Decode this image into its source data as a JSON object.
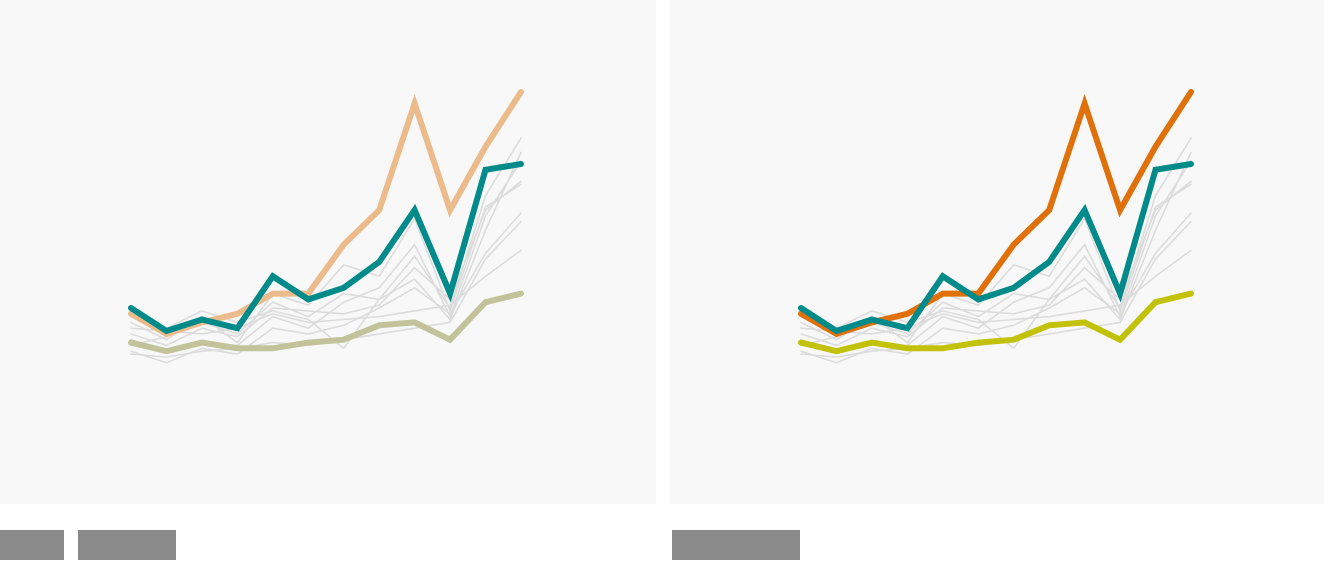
{
  "chart_data": [
    {
      "type": "line",
      "x": [
        1,
        2,
        3,
        4,
        5,
        6,
        7,
        8,
        9,
        10,
        11,
        12
      ],
      "ylim": [
        0,
        100
      ],
      "grid": false,
      "legend": "none",
      "series": [
        {
          "role": "context",
          "color": "#dcdcdc",
          "values": [
            20,
            14,
            22,
            13,
            30,
            26,
            40,
            36,
            56,
            24,
            60,
            68
          ]
        },
        {
          "role": "context",
          "color": "#dcdcdc",
          "values": [
            14,
            10,
            13,
            12,
            22,
            18,
            27,
            32,
            47,
            22,
            57,
            76
          ]
        },
        {
          "role": "context",
          "color": "#dcdcdc",
          "values": [
            18,
            17,
            16,
            18,
            23,
            20,
            21,
            22,
            24,
            26,
            36,
            45
          ]
        },
        {
          "role": "context",
          "color": "#dcdcdc",
          "values": [
            9,
            8,
            10,
            11,
            13,
            12,
            14,
            16,
            18,
            20,
            42,
            55
          ]
        },
        {
          "role": "context",
          "color": "#dcdcdc",
          "values": [
            12,
            15,
            20,
            16,
            27,
            22,
            30,
            28,
            43,
            25,
            64,
            84
          ]
        },
        {
          "role": "context",
          "color": "#dcdcdc",
          "values": [
            16,
            12,
            18,
            15,
            25,
            24,
            23,
            26,
            39,
            28,
            59,
            69
          ]
        },
        {
          "role": "context",
          "color": "#dcdcdc",
          "values": [
            10,
            6,
            11,
            9,
            18,
            16,
            19,
            25,
            32,
            23,
            44,
            58
          ]
        },
        {
          "role": "context",
          "color": "#dcdcdc",
          "values": [
            22,
            18,
            24,
            20,
            24,
            21,
            11,
            28,
            35,
            21,
            52,
            79
          ]
        },
        {
          "role": "highlight-orange",
          "values": [
            23,
            16,
            20,
            23,
            30,
            30,
            47,
            59,
            96,
            59,
            81,
            100
          ]
        },
        {
          "role": "highlight-teal",
          "values": [
            25,
            17,
            21,
            18,
            36,
            28,
            32,
            41,
            59,
            30,
            73,
            75
          ]
        },
        {
          "role": "highlight-olive",
          "values": [
            13,
            10,
            13,
            11,
            11,
            13,
            14,
            19,
            20,
            14,
            27,
            30
          ]
        }
      ]
    },
    {
      "type": "line",
      "x": [
        1,
        2,
        3,
        4,
        5,
        6,
        7,
        8,
        9,
        10,
        11,
        12
      ],
      "ylim": [
        0,
        100
      ],
      "grid": false,
      "legend": "none",
      "series": [
        {
          "role": "context",
          "color": "#dcdcdc",
          "values": [
            20,
            14,
            22,
            13,
            30,
            26,
            40,
            36,
            56,
            24,
            60,
            68
          ]
        },
        {
          "role": "context",
          "color": "#dcdcdc",
          "values": [
            14,
            10,
            13,
            12,
            22,
            18,
            27,
            32,
            47,
            22,
            57,
            76
          ]
        },
        {
          "role": "context",
          "color": "#dcdcdc",
          "values": [
            18,
            17,
            16,
            18,
            23,
            20,
            21,
            22,
            24,
            26,
            36,
            45
          ]
        },
        {
          "role": "context",
          "color": "#dcdcdc",
          "values": [
            9,
            8,
            10,
            11,
            13,
            12,
            14,
            16,
            18,
            20,
            42,
            55
          ]
        },
        {
          "role": "context",
          "color": "#dcdcdc",
          "values": [
            12,
            15,
            20,
            16,
            27,
            22,
            30,
            28,
            43,
            25,
            64,
            84
          ]
        },
        {
          "role": "context",
          "color": "#dcdcdc",
          "values": [
            16,
            12,
            18,
            15,
            25,
            24,
            23,
            26,
            39,
            28,
            59,
            69
          ]
        },
        {
          "role": "context",
          "color": "#dcdcdc",
          "values": [
            10,
            6,
            11,
            9,
            18,
            16,
            19,
            25,
            32,
            23,
            44,
            58
          ]
        },
        {
          "role": "context",
          "color": "#dcdcdc",
          "values": [
            22,
            18,
            24,
            20,
            24,
            21,
            11,
            28,
            35,
            21,
            52,
            79
          ]
        },
        {
          "role": "highlight-orange",
          "values": [
            23,
            16,
            20,
            23,
            30,
            30,
            47,
            59,
            96,
            59,
            81,
            100
          ]
        },
        {
          "role": "highlight-teal",
          "values": [
            25,
            17,
            21,
            18,
            36,
            28,
            32,
            41,
            59,
            30,
            73,
            75
          ]
        },
        {
          "role": "highlight-olive",
          "values": [
            13,
            10,
            13,
            11,
            11,
            13,
            14,
            19,
            20,
            14,
            27,
            30
          ]
        }
      ]
    }
  ],
  "colors": {
    "panel_background": "#f8f8f8",
    "context_line": "#dcdcdc",
    "left_orange": "#ecbb8b",
    "left_teal": "#008a8a",
    "left_olive": "#c2c39a",
    "right_orange": "#e0700a",
    "right_teal": "#008a8a",
    "right_olive": "#c2c20a",
    "caption_redaction": "#8a8a8a"
  },
  "captions": {
    "left_redacted_label": "",
    "right_redacted_label": ""
  }
}
